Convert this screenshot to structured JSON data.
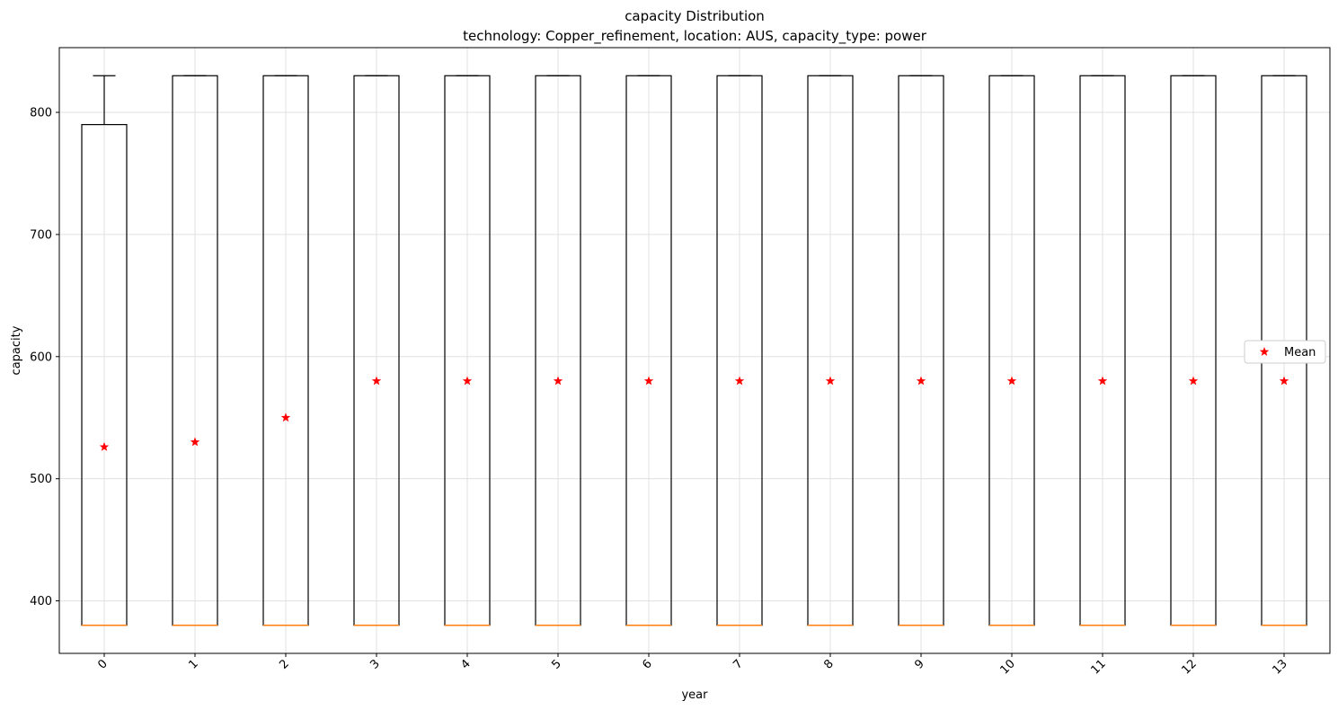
{
  "chart_data": {
    "type": "box",
    "title": "capacity Distribution",
    "subtitle": "technology: Copper_refinement, location: AUS, capacity_type: power",
    "xlabel": "year",
    "ylabel": "capacity",
    "categories": [
      "0",
      "1",
      "2",
      "3",
      "4",
      "5",
      "6",
      "7",
      "8",
      "9",
      "10",
      "11",
      "12",
      "13"
    ],
    "ylim": [
      357,
      853
    ],
    "yticks": [
      400,
      500,
      600,
      700,
      800
    ],
    "ytick_labels": [
      "400",
      "500",
      "600",
      "700",
      "800"
    ],
    "grid": true,
    "legend": {
      "position": "center-right",
      "entries": [
        "Mean"
      ]
    },
    "x_tick_rotation_deg": 45,
    "boxes": [
      {
        "year": "0",
        "min": 380,
        "q1": 380,
        "median": 380,
        "q3": 790,
        "max": 830,
        "mean": 526
      },
      {
        "year": "1",
        "min": 380,
        "q1": 380,
        "median": 380,
        "q3": 830,
        "max": 830,
        "mean": 530
      },
      {
        "year": "2",
        "min": 380,
        "q1": 380,
        "median": 380,
        "q3": 830,
        "max": 830,
        "mean": 550
      },
      {
        "year": "3",
        "min": 380,
        "q1": 380,
        "median": 380,
        "q3": 830,
        "max": 830,
        "mean": 580
      },
      {
        "year": "4",
        "min": 380,
        "q1": 380,
        "median": 380,
        "q3": 830,
        "max": 830,
        "mean": 580
      },
      {
        "year": "5",
        "min": 380,
        "q1": 380,
        "median": 380,
        "q3": 830,
        "max": 830,
        "mean": 580
      },
      {
        "year": "6",
        "min": 380,
        "q1": 380,
        "median": 380,
        "q3": 830,
        "max": 830,
        "mean": 580
      },
      {
        "year": "7",
        "min": 380,
        "q1": 380,
        "median": 380,
        "q3": 830,
        "max": 830,
        "mean": 580
      },
      {
        "year": "8",
        "min": 380,
        "q1": 380,
        "median": 380,
        "q3": 830,
        "max": 830,
        "mean": 580
      },
      {
        "year": "9",
        "min": 380,
        "q1": 380,
        "median": 380,
        "q3": 830,
        "max": 830,
        "mean": 580
      },
      {
        "year": "10",
        "min": 380,
        "q1": 380,
        "median": 380,
        "q3": 830,
        "max": 830,
        "mean": 580
      },
      {
        "year": "11",
        "min": 380,
        "q1": 380,
        "median": 380,
        "q3": 830,
        "max": 830,
        "mean": 580
      },
      {
        "year": "12",
        "min": 380,
        "q1": 380,
        "median": 380,
        "q3": 830,
        "max": 830,
        "mean": 580
      },
      {
        "year": "13",
        "min": 380,
        "q1": 380,
        "median": 380,
        "q3": 830,
        "max": 830,
        "mean": 580
      }
    ],
    "colors": {
      "box": "#000000",
      "median": "#ff7f0e",
      "mean": "#ff0000",
      "grid": "#e0e0e0"
    }
  }
}
